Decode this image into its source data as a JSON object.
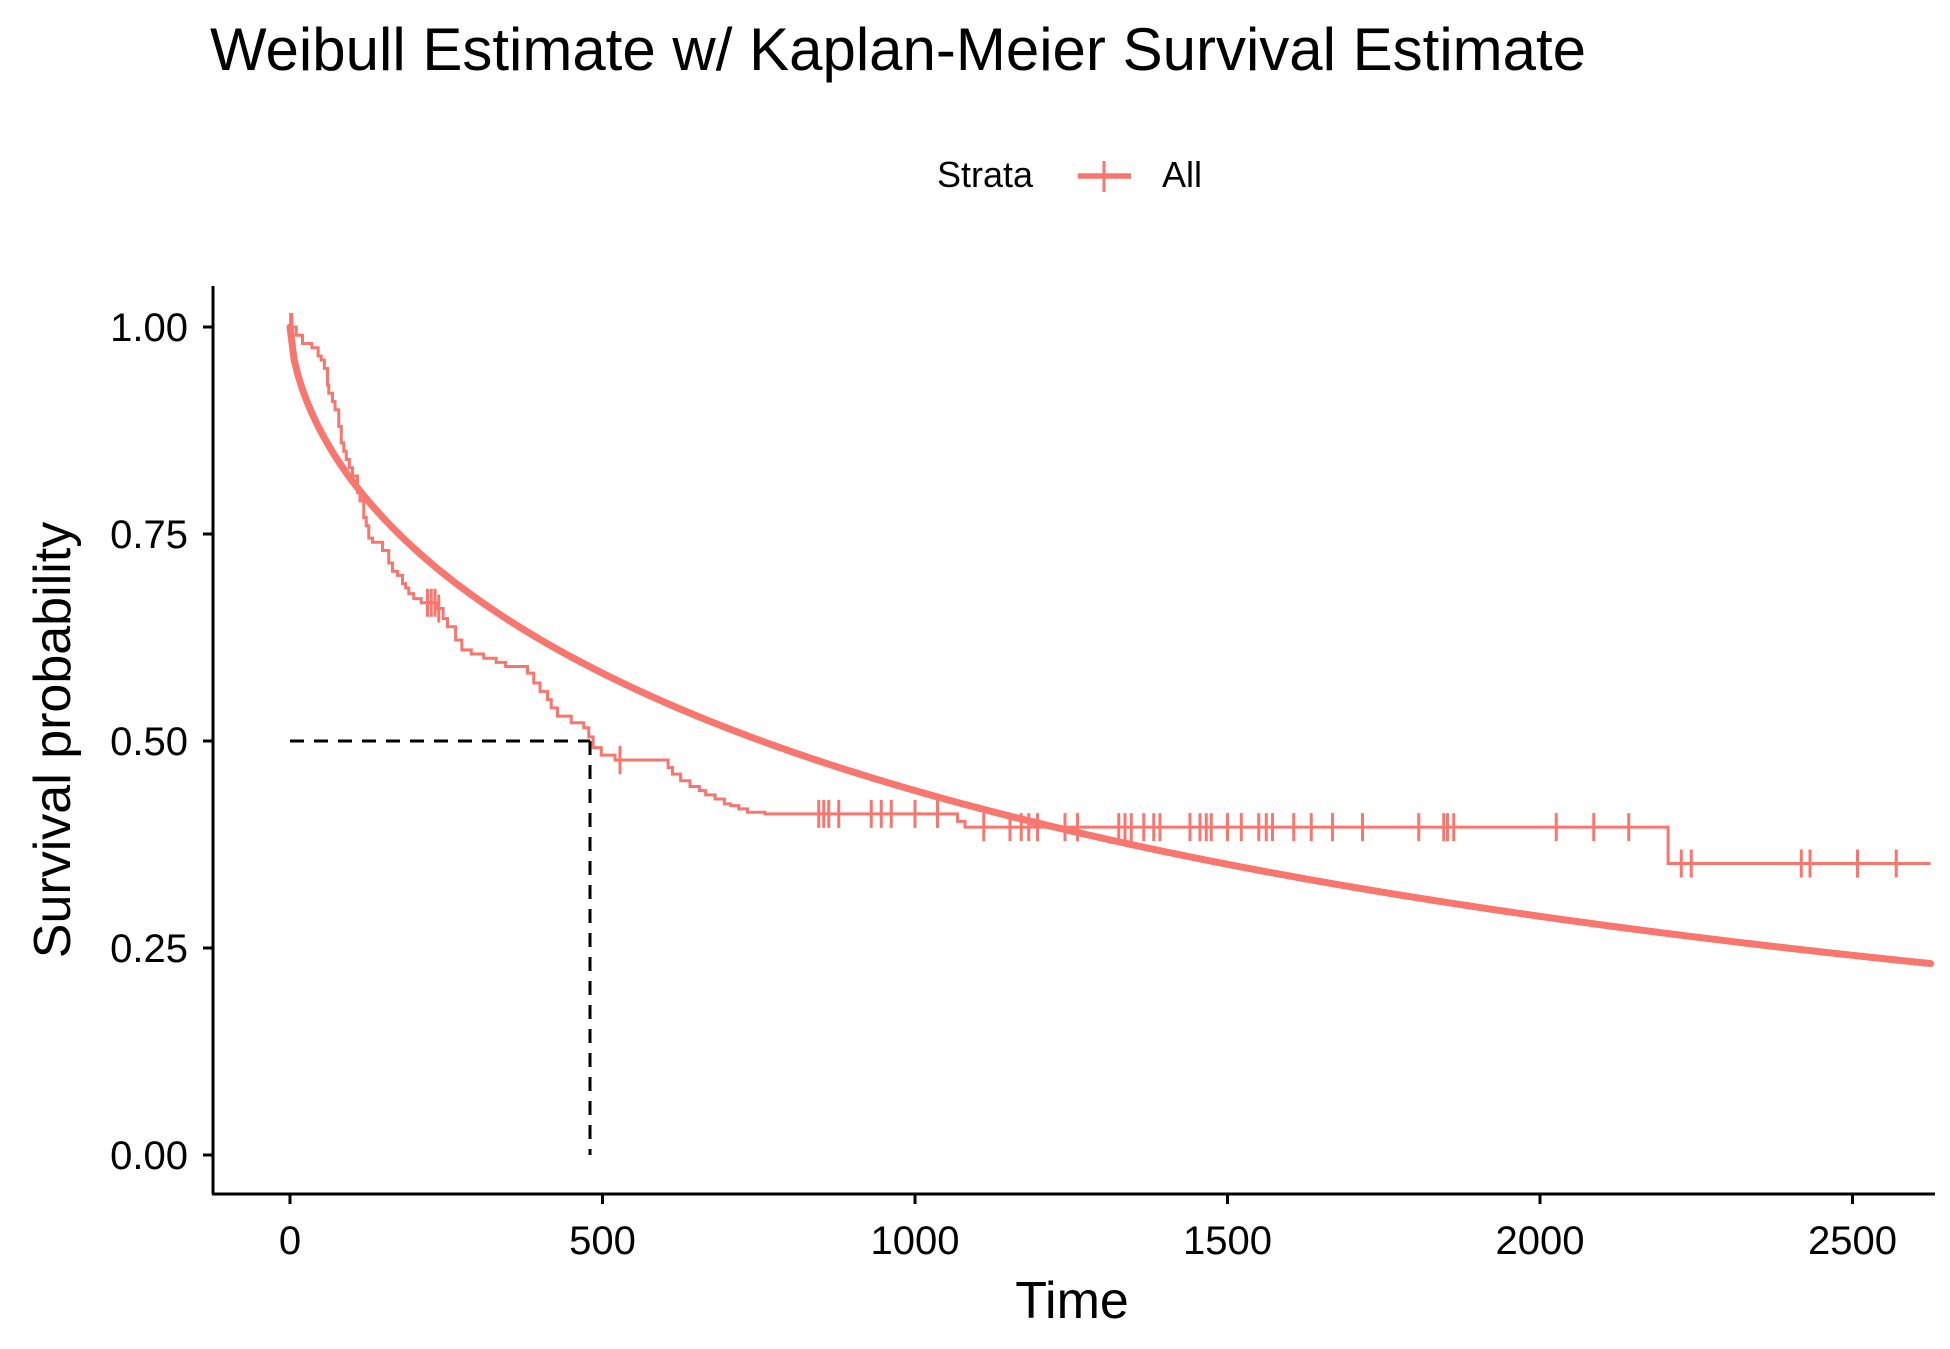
{
  "chart_data": {
    "type": "line",
    "title": "Weibull Estimate w/ Kaplan-Meier Survival Estimate",
    "xlabel": "Time",
    "ylabel": "Survival probability",
    "xlim": [
      -120,
      2625
    ],
    "ylim": [
      -0.05,
      1.05
    ],
    "x_ticks": [
      0,
      500,
      1000,
      1500,
      2000,
      2500
    ],
    "x_tick_labels": [
      "0",
      "500",
      "1000",
      "1500",
      "2000",
      "2500"
    ],
    "y_ticks": [
      0,
      0.25,
      0.5,
      0.75,
      1.0
    ],
    "y_tick_labels": [
      "0.00",
      "0.25",
      "0.50",
      "0.75",
      "1.00"
    ],
    "grid": false,
    "legend": {
      "placement": "top",
      "title": "Strata",
      "entries": [
        "All"
      ]
    },
    "colors": {
      "series": "#F8766D",
      "median_line": "#000000"
    },
    "series": [
      {
        "kind": "kaplan-meier",
        "steps": [
          [
            0,
            1.0
          ],
          [
            10,
            0.99
          ],
          [
            20,
            0.98
          ],
          [
            35,
            0.975
          ],
          [
            45,
            0.965
          ],
          [
            50,
            0.96
          ],
          [
            55,
            0.95
          ],
          [
            60,
            0.93
          ],
          [
            62,
            0.92
          ],
          [
            68,
            0.91
          ],
          [
            72,
            0.9
          ],
          [
            78,
            0.88
          ],
          [
            82,
            0.86
          ],
          [
            86,
            0.85
          ],
          [
            90,
            0.84
          ],
          [
            95,
            0.83
          ],
          [
            100,
            0.82
          ],
          [
            108,
            0.8
          ],
          [
            112,
            0.79
          ],
          [
            118,
            0.77
          ],
          [
            122,
            0.76
          ],
          [
            126,
            0.745
          ],
          [
            132,
            0.74
          ],
          [
            148,
            0.73
          ],
          [
            158,
            0.715
          ],
          [
            164,
            0.705
          ],
          [
            172,
            0.7
          ],
          [
            180,
            0.69
          ],
          [
            185,
            0.685
          ],
          [
            190,
            0.678
          ],
          [
            198,
            0.672
          ],
          [
            210,
            0.667
          ],
          [
            235,
            0.66
          ],
          [
            245,
            0.648
          ],
          [
            252,
            0.638
          ],
          [
            265,
            0.622
          ],
          [
            275,
            0.61
          ],
          [
            290,
            0.605
          ],
          [
            310,
            0.6
          ],
          [
            330,
            0.595
          ],
          [
            345,
            0.59
          ],
          [
            380,
            0.582
          ],
          [
            390,
            0.57
          ],
          [
            400,
            0.56
          ],
          [
            412,
            0.55
          ],
          [
            418,
            0.54
          ],
          [
            428,
            0.53
          ],
          [
            450,
            0.522
          ],
          [
            470,
            0.516
          ],
          [
            478,
            0.505
          ],
          [
            485,
            0.492
          ],
          [
            498,
            0.483
          ],
          [
            520,
            0.477
          ],
          [
            605,
            0.468
          ],
          [
            612,
            0.46
          ],
          [
            625,
            0.452
          ],
          [
            640,
            0.445
          ],
          [
            655,
            0.44
          ],
          [
            665,
            0.435
          ],
          [
            680,
            0.43
          ],
          [
            695,
            0.424
          ],
          [
            705,
            0.422
          ],
          [
            718,
            0.418
          ],
          [
            732,
            0.414
          ],
          [
            760,
            0.412
          ],
          [
            1068,
            0.403
          ],
          [
            1080,
            0.396
          ],
          [
            2195,
            0.396
          ],
          [
            2205,
            0.352
          ],
          [
            2625,
            0.352
          ]
        ],
        "censored_times": [
          1,
          3,
          220,
          226,
          232,
          238,
          528,
          846,
          854,
          862,
          878,
          930,
          946,
          962,
          1000,
          1036,
          1110,
          1152,
          1170,
          1182,
          1196,
          1240,
          1260,
          1326,
          1336,
          1346,
          1366,
          1382,
          1392,
          1440,
          1456,
          1466,
          1474,
          1500,
          1522,
          1550,
          1562,
          1572,
          1606,
          1634,
          1668,
          1716,
          1806,
          1846,
          1852,
          1862,
          2026,
          2086,
          2142,
          2226,
          2242,
          2418,
          2432,
          2508,
          2570
        ]
      },
      {
        "kind": "weibull",
        "shape": 0.6,
        "scale": 1390,
        "x_range": [
          0,
          2625
        ]
      }
    ],
    "median_survival_time": 480,
    "median_survival_probability": 0.5
  }
}
